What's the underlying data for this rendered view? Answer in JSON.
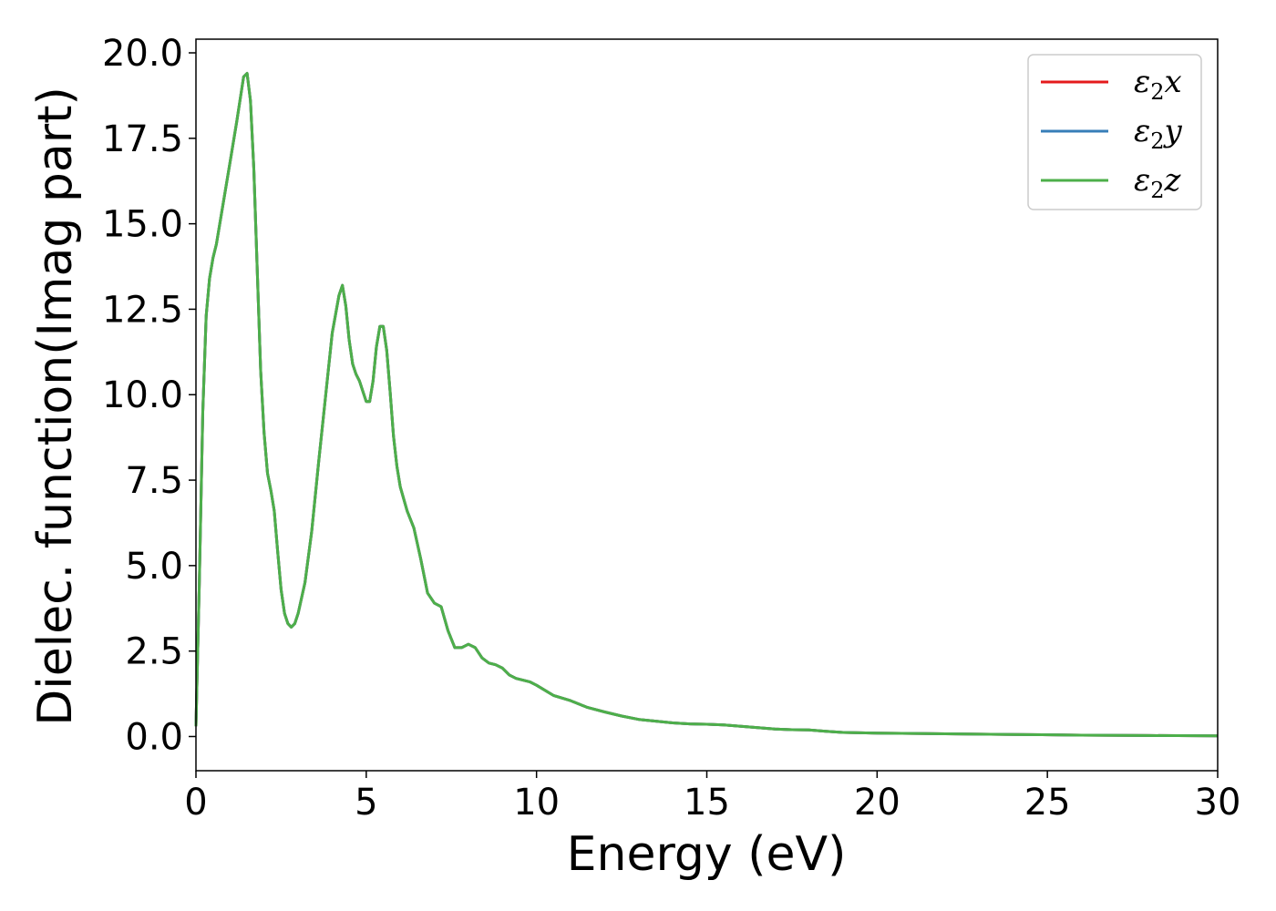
{
  "chart_data": {
    "type": "line",
    "xlabel": "Energy (eV)",
    "ylabel": "Dielec. function(Imag part)",
    "xlim": [
      0,
      30
    ],
    "ylim": [
      -1,
      20.4
    ],
    "xticks": [
      0,
      5,
      10,
      15,
      20,
      25,
      30
    ],
    "xtick_labels": [
      "0",
      "5",
      "10",
      "15",
      "20",
      "25",
      "30"
    ],
    "yticks": [
      0,
      2.5,
      5,
      7.5,
      10,
      12.5,
      15,
      17.5,
      20
    ],
    "ytick_labels": [
      "0.0",
      "2.5",
      "5.0",
      "7.5",
      "10.0",
      "12.5",
      "15.0",
      "17.5",
      "20.0"
    ],
    "grid": false,
    "legend_position": "top-right",
    "series": [
      {
        "name": "ε2x",
        "symbol": "ε",
        "subscript": "2",
        "suffix": "x",
        "color": "#e41a1c",
        "x": [
          0,
          0.1,
          0.2,
          0.3,
          0.4,
          0.5,
          0.6,
          0.8,
          1.0,
          1.2,
          1.4,
          1.5,
          1.6,
          1.7,
          1.8,
          1.9,
          2.0,
          2.1,
          2.2,
          2.3,
          2.4,
          2.5,
          2.6,
          2.7,
          2.8,
          2.9,
          3.0,
          3.2,
          3.4,
          3.6,
          3.8,
          4.0,
          4.2,
          4.3,
          4.4,
          4.5,
          4.6,
          4.7,
          4.8,
          4.9,
          5.0,
          5.1,
          5.2,
          5.3,
          5.4,
          5.5,
          5.6,
          5.7,
          5.8,
          5.9,
          6.0,
          6.2,
          6.4,
          6.6,
          6.8,
          7.0,
          7.2,
          7.4,
          7.6,
          7.8,
          8.0,
          8.2,
          8.4,
          8.6,
          8.8,
          9.0,
          9.2,
          9.4,
          9.6,
          9.8,
          10.0,
          10.5,
          11.0,
          11.5,
          12.0,
          12.5,
          13.0,
          13.5,
          14.0,
          14.5,
          15.0,
          15.5,
          16.0,
          16.5,
          17.0,
          17.5,
          18.0,
          18.5,
          19.0,
          20.0,
          22.0,
          24.0,
          26.0,
          28.0,
          30.0
        ],
        "values": [
          0.3,
          4.5,
          9.5,
          12.3,
          13.4,
          14.0,
          14.4,
          15.6,
          16.8,
          18.0,
          19.3,
          19.4,
          18.6,
          16.6,
          13.6,
          10.7,
          8.9,
          7.7,
          7.2,
          6.6,
          5.4,
          4.3,
          3.6,
          3.3,
          3.2,
          3.3,
          3.6,
          4.5,
          6.0,
          8.0,
          9.9,
          11.8,
          12.9,
          13.2,
          12.6,
          11.6,
          10.9,
          10.6,
          10.4,
          10.1,
          9.8,
          9.8,
          10.4,
          11.4,
          12.0,
          12.0,
          11.3,
          10.1,
          8.8,
          7.9,
          7.3,
          6.6,
          6.1,
          5.2,
          4.2,
          3.9,
          3.8,
          3.1,
          2.6,
          2.6,
          2.7,
          2.6,
          2.3,
          2.15,
          2.1,
          2.0,
          1.8,
          1.7,
          1.65,
          1.6,
          1.5,
          1.2,
          1.05,
          0.85,
          0.72,
          0.6,
          0.5,
          0.45,
          0.4,
          0.37,
          0.36,
          0.34,
          0.3,
          0.26,
          0.22,
          0.2,
          0.19,
          0.15,
          0.12,
          0.1,
          0.08,
          0.06,
          0.04,
          0.03,
          0.02
        ]
      },
      {
        "name": "ε2y",
        "symbol": "ε",
        "subscript": "2",
        "suffix": "y",
        "color": "#377eb8",
        "x": [
          0,
          0.1,
          0.2,
          0.3,
          0.4,
          0.5,
          0.6,
          0.8,
          1.0,
          1.2,
          1.4,
          1.5,
          1.6,
          1.7,
          1.8,
          1.9,
          2.0,
          2.1,
          2.2,
          2.3,
          2.4,
          2.5,
          2.6,
          2.7,
          2.8,
          2.9,
          3.0,
          3.2,
          3.4,
          3.6,
          3.8,
          4.0,
          4.2,
          4.3,
          4.4,
          4.5,
          4.6,
          4.7,
          4.8,
          4.9,
          5.0,
          5.1,
          5.2,
          5.3,
          5.4,
          5.5,
          5.6,
          5.7,
          5.8,
          5.9,
          6.0,
          6.2,
          6.4,
          6.6,
          6.8,
          7.0,
          7.2,
          7.4,
          7.6,
          7.8,
          8.0,
          8.2,
          8.4,
          8.6,
          8.8,
          9.0,
          9.2,
          9.4,
          9.6,
          9.8,
          10.0,
          10.5,
          11.0,
          11.5,
          12.0,
          12.5,
          13.0,
          13.5,
          14.0,
          14.5,
          15.0,
          15.5,
          16.0,
          16.5,
          17.0,
          17.5,
          18.0,
          18.5,
          19.0,
          20.0,
          22.0,
          24.0,
          26.0,
          28.0,
          30.0
        ],
        "values": [
          0.3,
          4.5,
          9.5,
          12.3,
          13.4,
          14.0,
          14.4,
          15.6,
          16.8,
          18.0,
          19.3,
          19.4,
          18.6,
          16.6,
          13.6,
          10.7,
          8.9,
          7.7,
          7.2,
          6.6,
          5.4,
          4.3,
          3.6,
          3.3,
          3.2,
          3.3,
          3.6,
          4.5,
          6.0,
          8.0,
          9.9,
          11.8,
          12.9,
          13.2,
          12.6,
          11.6,
          10.9,
          10.6,
          10.4,
          10.1,
          9.8,
          9.8,
          10.4,
          11.4,
          12.0,
          12.0,
          11.3,
          10.1,
          8.8,
          7.9,
          7.3,
          6.6,
          6.1,
          5.2,
          4.2,
          3.9,
          3.8,
          3.1,
          2.6,
          2.6,
          2.7,
          2.6,
          2.3,
          2.15,
          2.1,
          2.0,
          1.8,
          1.7,
          1.65,
          1.6,
          1.5,
          1.2,
          1.05,
          0.85,
          0.72,
          0.6,
          0.5,
          0.45,
          0.4,
          0.37,
          0.36,
          0.34,
          0.3,
          0.26,
          0.22,
          0.2,
          0.19,
          0.15,
          0.12,
          0.1,
          0.08,
          0.06,
          0.04,
          0.03,
          0.02
        ]
      },
      {
        "name": "ε2z",
        "symbol": "ε",
        "subscript": "2",
        "suffix": "z",
        "color": "#4daf4a",
        "x": [
          0,
          0.1,
          0.2,
          0.3,
          0.4,
          0.5,
          0.6,
          0.8,
          1.0,
          1.2,
          1.4,
          1.5,
          1.6,
          1.7,
          1.8,
          1.9,
          2.0,
          2.1,
          2.2,
          2.3,
          2.4,
          2.5,
          2.6,
          2.7,
          2.8,
          2.9,
          3.0,
          3.2,
          3.4,
          3.6,
          3.8,
          4.0,
          4.2,
          4.3,
          4.4,
          4.5,
          4.6,
          4.7,
          4.8,
          4.9,
          5.0,
          5.1,
          5.2,
          5.3,
          5.4,
          5.5,
          5.6,
          5.7,
          5.8,
          5.9,
          6.0,
          6.2,
          6.4,
          6.6,
          6.8,
          7.0,
          7.2,
          7.4,
          7.6,
          7.8,
          8.0,
          8.2,
          8.4,
          8.6,
          8.8,
          9.0,
          9.2,
          9.4,
          9.6,
          9.8,
          10.0,
          10.5,
          11.0,
          11.5,
          12.0,
          12.5,
          13.0,
          13.5,
          14.0,
          14.5,
          15.0,
          15.5,
          16.0,
          16.5,
          17.0,
          17.5,
          18.0,
          18.5,
          19.0,
          20.0,
          22.0,
          24.0,
          26.0,
          28.0,
          30.0
        ],
        "values": [
          0.3,
          4.5,
          9.5,
          12.3,
          13.4,
          14.0,
          14.4,
          15.6,
          16.8,
          18.0,
          19.3,
          19.4,
          18.6,
          16.6,
          13.6,
          10.7,
          8.9,
          7.7,
          7.2,
          6.6,
          5.4,
          4.3,
          3.6,
          3.3,
          3.2,
          3.3,
          3.6,
          4.5,
          6.0,
          8.0,
          9.9,
          11.8,
          12.9,
          13.2,
          12.6,
          11.6,
          10.9,
          10.6,
          10.4,
          10.1,
          9.8,
          9.8,
          10.4,
          11.4,
          12.0,
          12.0,
          11.3,
          10.1,
          8.8,
          7.9,
          7.3,
          6.6,
          6.1,
          5.2,
          4.2,
          3.9,
          3.8,
          3.1,
          2.6,
          2.6,
          2.7,
          2.6,
          2.3,
          2.15,
          2.1,
          2.0,
          1.8,
          1.7,
          1.65,
          1.6,
          1.5,
          1.2,
          1.05,
          0.85,
          0.72,
          0.6,
          0.5,
          0.45,
          0.4,
          0.37,
          0.36,
          0.34,
          0.3,
          0.26,
          0.22,
          0.2,
          0.19,
          0.15,
          0.12,
          0.1,
          0.08,
          0.06,
          0.04,
          0.03,
          0.02
        ]
      }
    ]
  }
}
